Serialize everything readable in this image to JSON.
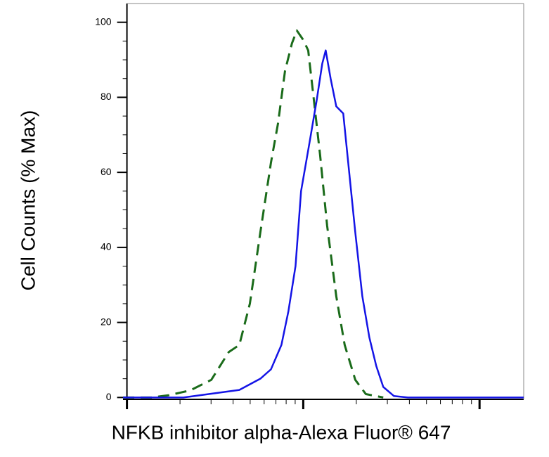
{
  "chart_data": {
    "type": "line",
    "x_label": "NFKB inhibitor alpha-Alexa Fluor® 647",
    "y_label": "Cell Counts (% Max)",
    "x_scale": "log",
    "xlim": [
      95,
      17800
    ],
    "xticks": [
      100,
      1000,
      10000
    ],
    "xminorticks": [
      200,
      300,
      400,
      500,
      600,
      700,
      800,
      900,
      2000,
      3000,
      4000,
      5000,
      6000,
      7000,
      8000,
      9000
    ],
    "ylim": [
      -0.5,
      105
    ],
    "yticks": [
      0,
      20,
      40,
      60,
      80,
      100
    ],
    "yminorticks": [
      5,
      10,
      15,
      25,
      30,
      35,
      45,
      50,
      55,
      65,
      70,
      75,
      85,
      90,
      95
    ],
    "series": [
      {
        "color": "#1a6b1a",
        "dash": true,
        "x": [
          95,
          138,
          173,
          229,
          301,
          378,
          434,
          498,
          571,
          656,
          719,
          788,
          863,
          920,
          1000,
          1067,
          1138,
          1247,
          1366,
          1539,
          1718,
          1973,
          2265,
          2844
        ],
        "values": [
          0,
          0,
          0.6,
          1.9,
          4.7,
          12.1,
          14,
          25,
          44,
          62.6,
          73,
          87,
          94.4,
          97.8,
          95.3,
          92.5,
          81,
          64.5,
          45.8,
          27,
          14,
          4.7,
          0.9,
          0
        ]
      },
      {
        "color": "#1414e6",
        "dash": false,
        "x": [
          95,
          120,
          209,
          301,
          434,
          571,
          656,
          752,
          824,
          904,
          972,
          1086,
          1190,
          1282,
          1341,
          1430,
          1539,
          1686,
          1799,
          1973,
          2163,
          2371,
          2595,
          2844,
          3266,
          3925,
          17800
        ],
        "values": [
          0,
          0,
          0,
          1,
          2,
          5,
          7.5,
          14,
          23,
          35,
          55,
          68,
          79,
          89,
          92.5,
          85,
          77.6,
          75.7,
          62.6,
          44,
          27,
          16,
          8.4,
          2.8,
          0.4,
          0,
          0
        ]
      }
    ]
  }
}
